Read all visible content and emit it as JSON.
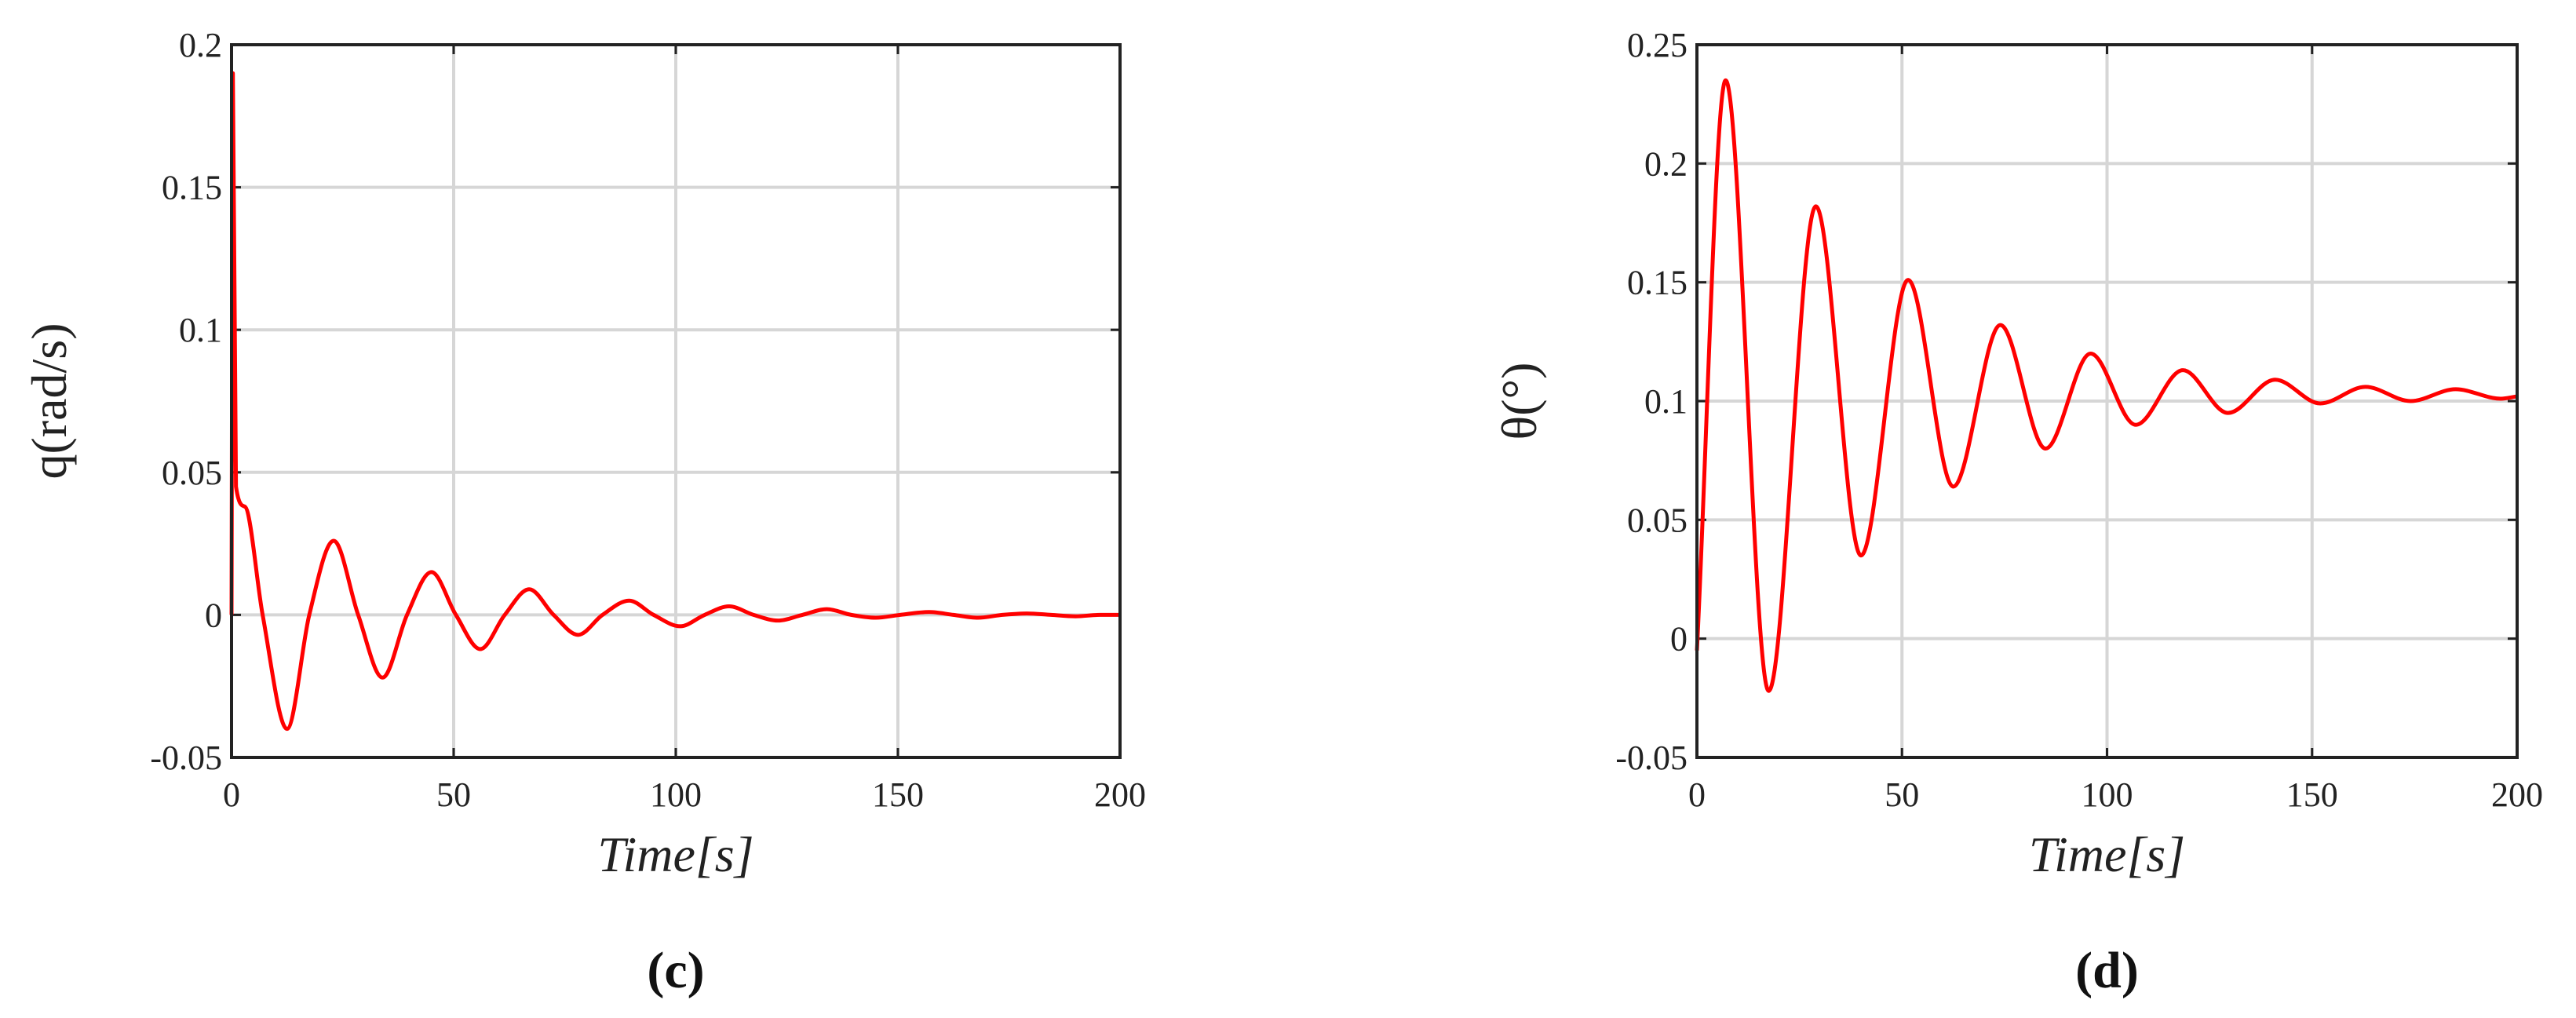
{
  "chart_data": [
    {
      "type": "line",
      "caption": "(c)",
      "xlabel": "Time[s]",
      "ylabel": "q(rad/s)",
      "color": "#ff0000",
      "grid": true,
      "xlim": [
        0,
        200
      ],
      "xticks": [
        0,
        50,
        100,
        150,
        200
      ],
      "ylim": [
        -0.05,
        0.2
      ],
      "yticks": [
        -0.05,
        0,
        0.05,
        0.1,
        0.15,
        0.2
      ],
      "x": [
        0,
        0.3,
        1,
        3,
        7,
        12.5,
        17.5,
        23,
        28.5,
        34,
        39.5,
        45,
        50.5,
        56,
        61.5,
        67,
        72.5,
        78,
        83.5,
        89.5,
        95,
        101,
        106.5,
        112,
        117.5,
        123,
        128.5,
        134,
        139.5,
        145,
        150.5,
        157,
        162.5,
        168,
        173.5,
        179,
        184.5,
        190,
        195.5,
        200
      ],
      "values": [
        0,
        0.19,
        0.045,
        0.038,
        0,
        -0.04,
        0,
        0.026,
        0,
        -0.022,
        0,
        0.015,
        0,
        -0.012,
        0,
        0.009,
        0,
        -0.007,
        0,
        0.005,
        0,
        -0.004,
        0,
        0.003,
        0,
        -0.002,
        0,
        0.002,
        0,
        -0.001,
        0,
        0.001,
        0,
        -0.001,
        0,
        0.0005,
        0,
        -0.0005,
        0,
        0
      ]
    },
    {
      "type": "line",
      "caption": "(d)",
      "xlabel": "Time[s]",
      "ylabel": "θ(°)",
      "color": "#ff0000",
      "grid": true,
      "xlim": [
        0,
        200
      ],
      "xticks": [
        0,
        50,
        100,
        150,
        200
      ],
      "ylim": [
        -0.05,
        0.25
      ],
      "yticks": [
        -0.05,
        0,
        0.05,
        0.1,
        0.15,
        0.2,
        0.25
      ],
      "x": [
        0,
        7,
        17.5,
        29,
        40,
        51.5,
        62.5,
        74,
        85,
        96,
        107,
        118.5,
        129.5,
        141,
        152,
        163,
        174,
        185,
        196,
        200
      ],
      "values": [
        -0.005,
        0.235,
        -0.022,
        0.182,
        0.035,
        0.151,
        0.064,
        0.132,
        0.08,
        0.12,
        0.09,
        0.113,
        0.095,
        0.109,
        0.099,
        0.106,
        0.1,
        0.105,
        0.101,
        0.102
      ]
    }
  ]
}
